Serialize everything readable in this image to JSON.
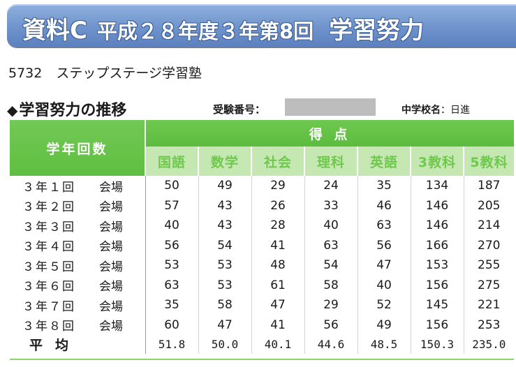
{
  "banner": {
    "label": "資料C",
    "period": "平成２８年度３年第8回",
    "title": "学習努力"
  },
  "school_line": {
    "code": "5732",
    "name": "ステップステージ学習塾"
  },
  "section": {
    "diamond": "◆",
    "title": "学習努力の推移",
    "exam_number_label": "受験番号：",
    "school_label": "中学校名",
    "school_colon": "：",
    "school_value": "日進"
  },
  "table": {
    "row_header": "学年回数",
    "score_header": "得 点",
    "subjects": [
      "国語",
      "数学",
      "社会",
      "理科",
      "英語",
      "3教科",
      "5教科"
    ],
    "rows": [
      {
        "name": "３年１回",
        "venue": "会場",
        "values": [
          "50",
          "49",
          "29",
          "24",
          "35",
          "134",
          "187"
        ]
      },
      {
        "name": "３年２回",
        "venue": "会場",
        "values": [
          "57",
          "43",
          "26",
          "33",
          "46",
          "146",
          "205"
        ]
      },
      {
        "name": "３年３回",
        "venue": "会場",
        "values": [
          "40",
          "43",
          "28",
          "40",
          "63",
          "146",
          "214"
        ]
      },
      {
        "name": "３年４回",
        "venue": "会場",
        "values": [
          "56",
          "54",
          "41",
          "63",
          "56",
          "166",
          "270"
        ]
      },
      {
        "name": "３年５回",
        "venue": "会場",
        "values": [
          "53",
          "53",
          "48",
          "54",
          "47",
          "153",
          "255"
        ]
      },
      {
        "name": "３年６回",
        "venue": "会場",
        "values": [
          "63",
          "53",
          "61",
          "58",
          "40",
          "156",
          "275"
        ]
      },
      {
        "name": "３年７回",
        "venue": "会場",
        "values": [
          "35",
          "58",
          "47",
          "29",
          "52",
          "145",
          "221"
        ]
      },
      {
        "name": "３年８回",
        "venue": "会場",
        "values": [
          "60",
          "47",
          "41",
          "56",
          "49",
          "156",
          "253"
        ]
      }
    ],
    "average": {
      "label": "平均",
      "values": [
        "51.8",
        "50.0",
        "40.1",
        "44.6",
        "48.5",
        "150.3",
        "235.0"
      ]
    }
  },
  "colors": {
    "banner": "#6f93cc",
    "header_green": "#5cbc3e",
    "subheader_green": "#c5e8b2",
    "redaction": "#bdbdbd"
  }
}
